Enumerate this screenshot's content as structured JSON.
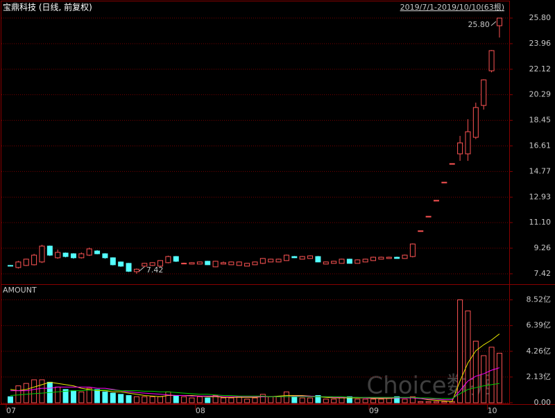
{
  "chart_data": [
    {
      "type": "candlestick",
      "title": "宝鼎科技 (日线, 前复权)",
      "subtitle": "2019/7/1-2019/10/10(63根)",
      "open": [
        8.02,
        7.87,
        8.02,
        8.07,
        8.27,
        9.41,
        8.57,
        8.91,
        8.86,
        8.57,
        8.76,
        9.06,
        8.86,
        8.57,
        8.27,
        8.17,
        7.57,
        7.97,
        8.02,
        7.97,
        8.22,
        8.66,
        8.17,
        8.12,
        8.12,
        8.32,
        7.92,
        8.12,
        8.07,
        8.02,
        7.97,
        8.07,
        8.17,
        8.27,
        8.27,
        8.37,
        8.66,
        8.47,
        8.52,
        8.66,
        8.12,
        8.17,
        8.17,
        8.47,
        8.17,
        8.27,
        8.37,
        8.47,
        8.52,
        8.61,
        8.52,
        8.66,
        10.51,
        11.55,
        12.7,
        14.0,
        15.34,
        16.04,
        16.04,
        17.23,
        19.52,
        22.01,
        25.25
      ],
      "high": [
        8.05,
        8.35,
        8.5,
        8.85,
        9.5,
        9.45,
        9.16,
        8.95,
        8.9,
        8.95,
        9.3,
        9.12,
        8.9,
        8.6,
        8.3,
        8.2,
        7.8,
        8.2,
        8.25,
        8.4,
        8.72,
        8.7,
        8.22,
        8.25,
        8.3,
        8.35,
        8.35,
        8.3,
        8.3,
        8.3,
        8.2,
        8.3,
        8.55,
        8.5,
        8.5,
        8.8,
        8.7,
        8.7,
        8.75,
        8.7,
        8.3,
        8.35,
        8.5,
        8.5,
        8.45,
        8.5,
        8.65,
        8.65,
        8.65,
        8.65,
        8.8,
        9.6,
        10.51,
        11.55,
        12.7,
        14.0,
        15.34,
        17.33,
        18.53,
        19.72,
        21.4,
        23.5,
        25.8
      ],
      "low": [
        7.95,
        7.8,
        7.98,
        8.02,
        8.2,
        8.7,
        8.5,
        8.6,
        8.5,
        8.52,
        8.7,
        8.82,
        8.5,
        8.02,
        7.92,
        7.55,
        7.42,
        7.9,
        7.98,
        7.92,
        8.17,
        8.27,
        8.12,
        8.1,
        8.1,
        8.05,
        7.9,
        8.1,
        8.05,
        8.0,
        7.95,
        8.05,
        8.12,
        8.25,
        8.25,
        8.35,
        8.55,
        8.45,
        8.5,
        8.25,
        8.1,
        8.15,
        8.15,
        8.15,
        8.15,
        8.25,
        8.35,
        8.45,
        8.5,
        8.5,
        8.5,
        8.6,
        10.51,
        11.55,
        12.7,
        14.0,
        15.34,
        15.54,
        15.54,
        17.1,
        19.22,
        21.9,
        24.4
      ],
      "close": [
        7.97,
        8.27,
        8.47,
        8.76,
        9.41,
        8.76,
        8.96,
        8.66,
        8.57,
        8.86,
        9.21,
        8.86,
        8.57,
        8.07,
        7.97,
        7.6,
        7.75,
        8.17,
        8.22,
        8.37,
        8.66,
        8.32,
        8.18,
        8.22,
        8.27,
        8.07,
        8.32,
        8.22,
        8.27,
        8.27,
        8.17,
        8.27,
        8.52,
        8.47,
        8.47,
        8.76,
        8.57,
        8.66,
        8.71,
        8.27,
        8.27,
        8.32,
        8.47,
        8.17,
        8.42,
        8.47,
        8.61,
        8.61,
        8.61,
        8.52,
        8.76,
        9.56,
        10.51,
        11.55,
        12.7,
        14.0,
        15.34,
        16.83,
        17.63,
        19.37,
        21.36,
        23.46,
        25.8
      ],
      "up_color": "#ff5454",
      "down_color": "#54ffff",
      "ylim": [
        6.77,
        26.6
      ],
      "yticks": [
        7.42,
        9.26,
        {
          "value": 11.1,
          "label": "11.10"
        },
        12.93,
        14.77,
        16.61,
        18.45,
        20.29,
        22.12,
        23.96,
        {
          "value": 25.8,
          "label": "25.80"
        }
      ],
      "grid": true,
      "annotations": [
        {
          "text": "25.80",
          "at": "max"
        },
        {
          "text": "7.42",
          "at": "min"
        }
      ]
    },
    {
      "type": "bar",
      "title": "AMOUNT",
      "categories": [
        "07",
        null,
        null,
        null,
        null,
        null,
        null,
        null,
        null,
        null,
        null,
        null,
        null,
        null,
        null,
        null,
        null,
        null,
        null,
        null,
        null,
        null,
        null,
        null,
        "08",
        null,
        null,
        null,
        null,
        null,
        null,
        null,
        null,
        null,
        null,
        null,
        null,
        null,
        null,
        null,
        null,
        null,
        null,
        null,
        null,
        null,
        "09",
        null,
        null,
        null,
        null,
        null,
        null,
        null,
        null,
        null,
        null,
        null,
        null,
        null,
        null,
        "10",
        null
      ],
      "values": [
        0.5,
        1.4,
        1.6,
        1.9,
        1.9,
        1.7,
        1.3,
        1.1,
        1.0,
        0.9,
        1.2,
        1.1,
        0.9,
        0.8,
        0.7,
        0.6,
        0.5,
        0.5,
        0.5,
        0.5,
        0.9,
        0.6,
        0.5,
        0.4,
        0.5,
        0.4,
        0.6,
        0.4,
        0.4,
        0.5,
        0.3,
        0.4,
        0.7,
        0.5,
        0.5,
        0.9,
        0.5,
        0.4,
        0.4,
        0.6,
        0.3,
        0.3,
        0.4,
        0.5,
        0.3,
        0.3,
        0.3,
        0.3,
        0.4,
        0.5,
        0.3,
        0.5,
        0.1,
        0.1,
        0.1,
        0.1,
        0.1,
        8.52,
        7.6,
        5.1,
        3.9,
        4.6,
        4.1
      ],
      "lines": [
        {
          "color": "#e8e800",
          "values": [
            1.1,
            1.0,
            1.1,
            1.3,
            1.5,
            1.7,
            1.6,
            1.5,
            1.4,
            1.2,
            1.1,
            1.0,
            1.0,
            0.9,
            0.9,
            0.8,
            0.7,
            0.6,
            0.55,
            0.5,
            0.6,
            0.6,
            0.6,
            0.6,
            0.55,
            0.5,
            0.5,
            0.45,
            0.45,
            0.45,
            0.45,
            0.45,
            0.5,
            0.5,
            0.55,
            0.6,
            0.6,
            0.6,
            0.55,
            0.5,
            0.45,
            0.4,
            0.4,
            0.4,
            0.4,
            0.4,
            0.35,
            0.35,
            0.35,
            0.4,
            0.4,
            0.4,
            0.35,
            0.25,
            0.2,
            0.15,
            0.1,
            1.8,
            3.3,
            4.3,
            4.8,
            5.2,
            5.7
          ]
        },
        {
          "color": "#ff00ff",
          "values": [
            1.0,
            1.0,
            1.0,
            1.1,
            1.2,
            1.2,
            1.3,
            1.3,
            1.3,
            1.3,
            1.3,
            1.2,
            1.2,
            1.1,
            1.0,
            0.9,
            0.85,
            0.8,
            0.75,
            0.7,
            0.65,
            0.6,
            0.6,
            0.55,
            0.55,
            0.55,
            0.55,
            0.5,
            0.5,
            0.5,
            0.5,
            0.5,
            0.5,
            0.5,
            0.5,
            0.5,
            0.55,
            0.55,
            0.55,
            0.5,
            0.5,
            0.45,
            0.45,
            0.45,
            0.45,
            0.4,
            0.4,
            0.4,
            0.4,
            0.4,
            0.4,
            0.4,
            0.35,
            0.3,
            0.3,
            0.25,
            0.25,
            1.0,
            1.8,
            2.2,
            2.4,
            2.7,
            2.9
          ]
        },
        {
          "color": "#00d000",
          "values": [
            0.6,
            0.65,
            0.7,
            0.75,
            0.8,
            0.85,
            0.9,
            0.95,
            1.0,
            1.0,
            1.05,
            1.05,
            1.05,
            1.05,
            1.0,
            1.0,
            1.0,
            0.95,
            0.95,
            0.9,
            0.9,
            0.85,
            0.8,
            0.75,
            0.7,
            0.7,
            0.65,
            0.6,
            0.6,
            0.55,
            0.55,
            0.55,
            0.55,
            0.5,
            0.5,
            0.5,
            0.5,
            0.5,
            0.5,
            0.5,
            0.5,
            0.5,
            0.5,
            0.45,
            0.45,
            0.45,
            0.45,
            0.45,
            0.45,
            0.45,
            0.45,
            0.45,
            0.4,
            0.4,
            0.35,
            0.35,
            0.35,
            0.75,
            1.1,
            1.25,
            1.4,
            1.5,
            1.6
          ]
        }
      ],
      "ylim": [
        0,
        9.7
      ],
      "yticks": [
        {
          "value": 0,
          "label": "0.00"
        },
        {
          "value": 2.13,
          "label": "2.13亿"
        },
        {
          "value": 4.26,
          "label": "4.26亿"
        },
        {
          "value": 6.39,
          "label": "6.39亿"
        },
        {
          "value": 8.52,
          "label": "8.52亿"
        }
      ],
      "grid": true
    }
  ],
  "watermark": "Choice数据"
}
